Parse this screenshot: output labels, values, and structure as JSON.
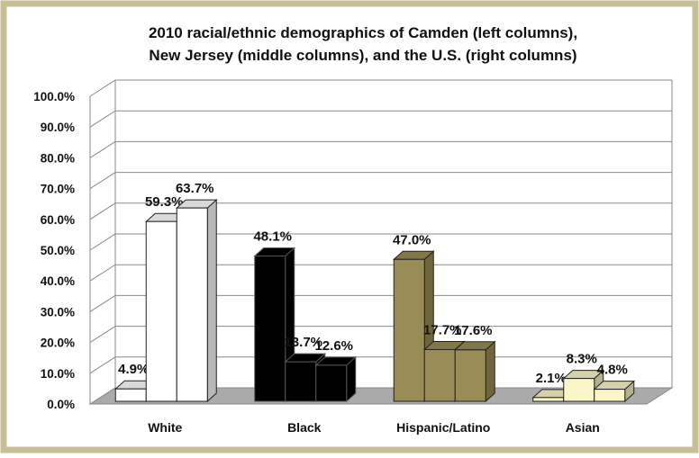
{
  "chart_data": {
    "type": "bar",
    "title_lines": [
      "2010 racial/ethnic demographics of Camden (left columns),",
      "New Jersey (middle columns), and the U.S. (right columns)"
    ],
    "categories": [
      "White",
      "Black",
      "Hispanic/Latino",
      "Asian"
    ],
    "series": [
      {
        "name": "Camden",
        "values": [
          4.9,
          48.1,
          47.0,
          2.1
        ]
      },
      {
        "name": "New Jersey",
        "values": [
          59.3,
          13.7,
          17.7,
          8.3
        ]
      },
      {
        "name": "U.S.",
        "values": [
          63.7,
          12.6,
          17.6,
          4.8
        ]
      }
    ],
    "data_labels": [
      [
        "4.9%",
        "59.3%",
        "63.7%"
      ],
      [
        "48.1%",
        "13.7%",
        "12.6%"
      ],
      [
        "47.0%",
        "17.7%",
        "17.6%"
      ],
      [
        "2.1%",
        "8.3%",
        "4.8%"
      ]
    ],
    "y_ticks": [
      "0.0%",
      "10.0%",
      "20.0%",
      "30.0%",
      "40.0%",
      "50.0%",
      "60.0%",
      "70.0%",
      "80.0%",
      "90.0%",
      "100.0%"
    ],
    "ylim": [
      0,
      100
    ],
    "category_colors": [
      "#ffffff",
      "#000000",
      "#998c56",
      "#fbf6c8"
    ],
    "border_color": "#c8bf97",
    "floor_color": "#aaaaaa",
    "grid": true,
    "legend": "none",
    "view": "3d-columns"
  }
}
